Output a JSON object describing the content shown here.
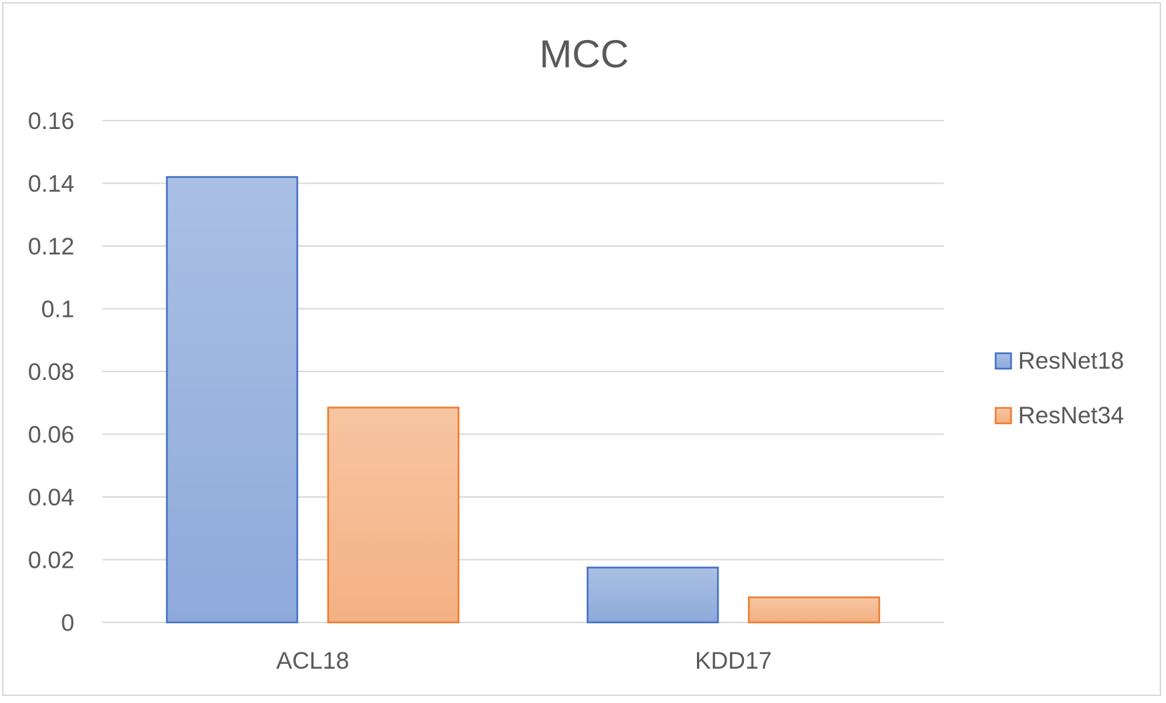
{
  "chart_data": {
    "type": "bar",
    "title": "MCC",
    "xlabel": "",
    "ylabel": "",
    "categories": [
      "ACL18",
      "KDD17"
    ],
    "series": [
      {
        "name": "ResNet18",
        "values": [
          0.142,
          0.0175
        ],
        "color": "#8eaadb",
        "border": "#4472c4"
      },
      {
        "name": "ResNet34",
        "values": [
          0.0685,
          0.008
        ],
        "color": "#f4b183",
        "border": "#ed7d31"
      }
    ],
    "ylim": [
      0,
      0.16
    ],
    "yticks": [
      0,
      0.02,
      0.04,
      0.06,
      0.08,
      0.1,
      0.12,
      0.14,
      0.16
    ],
    "ytick_labels": [
      "0",
      "0.02",
      "0.04",
      "0.06",
      "0.08",
      "0.1",
      "0.12",
      "0.14",
      "0.16"
    ],
    "grid": true,
    "legend_position": "right"
  }
}
